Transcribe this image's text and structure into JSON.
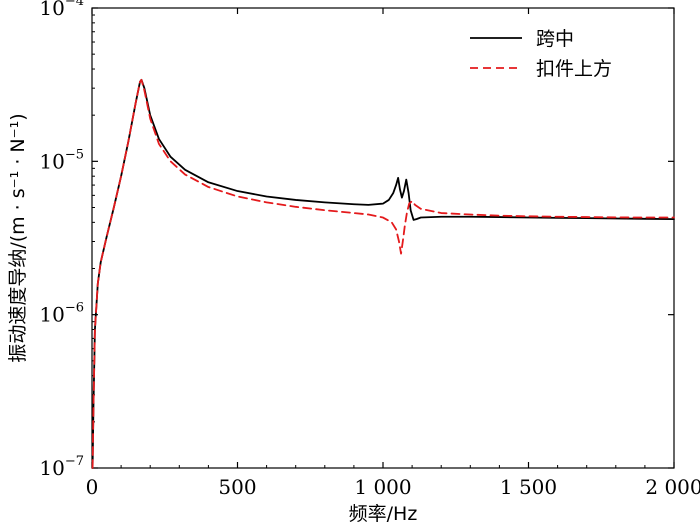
{
  "chart_data": {
    "type": "line",
    "title": "",
    "xlabel": "频率/Hz",
    "ylabel": "振动速度导纳/(m · s⁻¹ · N⁻¹)",
    "xlim": [
      0,
      2000
    ],
    "ylim": [
      1e-07,
      0.0001
    ],
    "yscale": "log",
    "grid": false,
    "legend_position": "top-right",
    "x_ticks": [
      {
        "value": 0,
        "label": "0"
      },
      {
        "value": 500,
        "label": "500"
      },
      {
        "value": 1000,
        "label": "1 000"
      },
      {
        "value": 1500,
        "label": "1 500"
      },
      {
        "value": 2000,
        "label": "2 000"
      }
    ],
    "y_ticks": [
      {
        "value": 1e-07,
        "base": "10",
        "exp": "−7"
      },
      {
        "value": 1e-06,
        "base": "10",
        "exp": "−6"
      },
      {
        "value": 1e-05,
        "base": "10",
        "exp": "−5"
      },
      {
        "value": 0.0001,
        "base": "10",
        "exp": "−4"
      }
    ],
    "series": [
      {
        "name": "跨中",
        "color": "#000000",
        "dash": "solid",
        "x": [
          2,
          5,
          10,
          20,
          30,
          50,
          75,
          100,
          125,
          150,
          165,
          170,
          180,
          200,
          230,
          270,
          320,
          400,
          500,
          600,
          700,
          800,
          900,
          950,
          1000,
          1020,
          1035,
          1045,
          1052,
          1058,
          1065,
          1072,
          1080,
          1088,
          1095,
          1105,
          1115,
          1130,
          1200,
          1300,
          1400,
          1500,
          1600,
          1700,
          1800,
          1900,
          2000
        ],
        "y": [
          1e-07,
          2.5e-07,
          8e-07,
          1.6e-06,
          2.2e-06,
          3.2e-06,
          5e-06,
          8e-06,
          1.35e-05,
          2.4e-05,
          3.3e-05,
          3.4e-05,
          3e-05,
          2e-05,
          1.4e-05,
          1.07e-05,
          8.8e-06,
          7.3e-06,
          6.4e-06,
          5.9e-06,
          5.6e-06,
          5.4e-06,
          5.25e-06,
          5.2e-06,
          5.3e-06,
          5.6e-06,
          6.2e-06,
          7e-06,
          7.8e-06,
          6.6e-06,
          5.8e-06,
          6.4e-06,
          7.6e-06,
          6.2e-06,
          4.8e-06,
          4.15e-06,
          4.2e-06,
          4.3e-06,
          4.35e-06,
          4.35e-06,
          4.33e-06,
          4.3e-06,
          4.28e-06,
          4.26e-06,
          4.24e-06,
          4.22e-06,
          4.2e-06
        ]
      },
      {
        "name": "扣件上方",
        "color": "#e41a1c",
        "dash": "dashed",
        "x": [
          2,
          5,
          10,
          20,
          30,
          50,
          75,
          100,
          125,
          150,
          165,
          170,
          180,
          200,
          230,
          270,
          320,
          400,
          500,
          600,
          700,
          800,
          900,
          950,
          1000,
          1030,
          1045,
          1055,
          1062,
          1068,
          1075,
          1082,
          1090,
          1100,
          1110,
          1130,
          1200,
          1300,
          1400,
          1500,
          1600,
          1700,
          1800,
          1900,
          2000
        ],
        "y": [
          1e-07,
          2.5e-07,
          8e-07,
          1.6e-06,
          2.2e-06,
          3.2e-06,
          5e-06,
          8e-06,
          1.35e-05,
          2.4e-05,
          3.3e-05,
          3.4e-05,
          2.9e-05,
          1.9e-05,
          1.3e-05,
          1e-05,
          8.2e-06,
          6.8e-06,
          5.9e-06,
          5.4e-06,
          5.05e-06,
          4.8e-06,
          4.6e-06,
          4.5e-06,
          4.3e-06,
          4e-06,
          3.6e-06,
          3e-06,
          2.5e-06,
          3e-06,
          3.8e-06,
          4.6e-06,
          5.3e-06,
          5.5e-06,
          5.2e-06,
          4.9e-06,
          4.6e-06,
          4.5e-06,
          4.42e-06,
          4.38e-06,
          4.35e-06,
          4.33e-06,
          4.31e-06,
          4.3e-06,
          4.3e-06
        ]
      }
    ]
  }
}
